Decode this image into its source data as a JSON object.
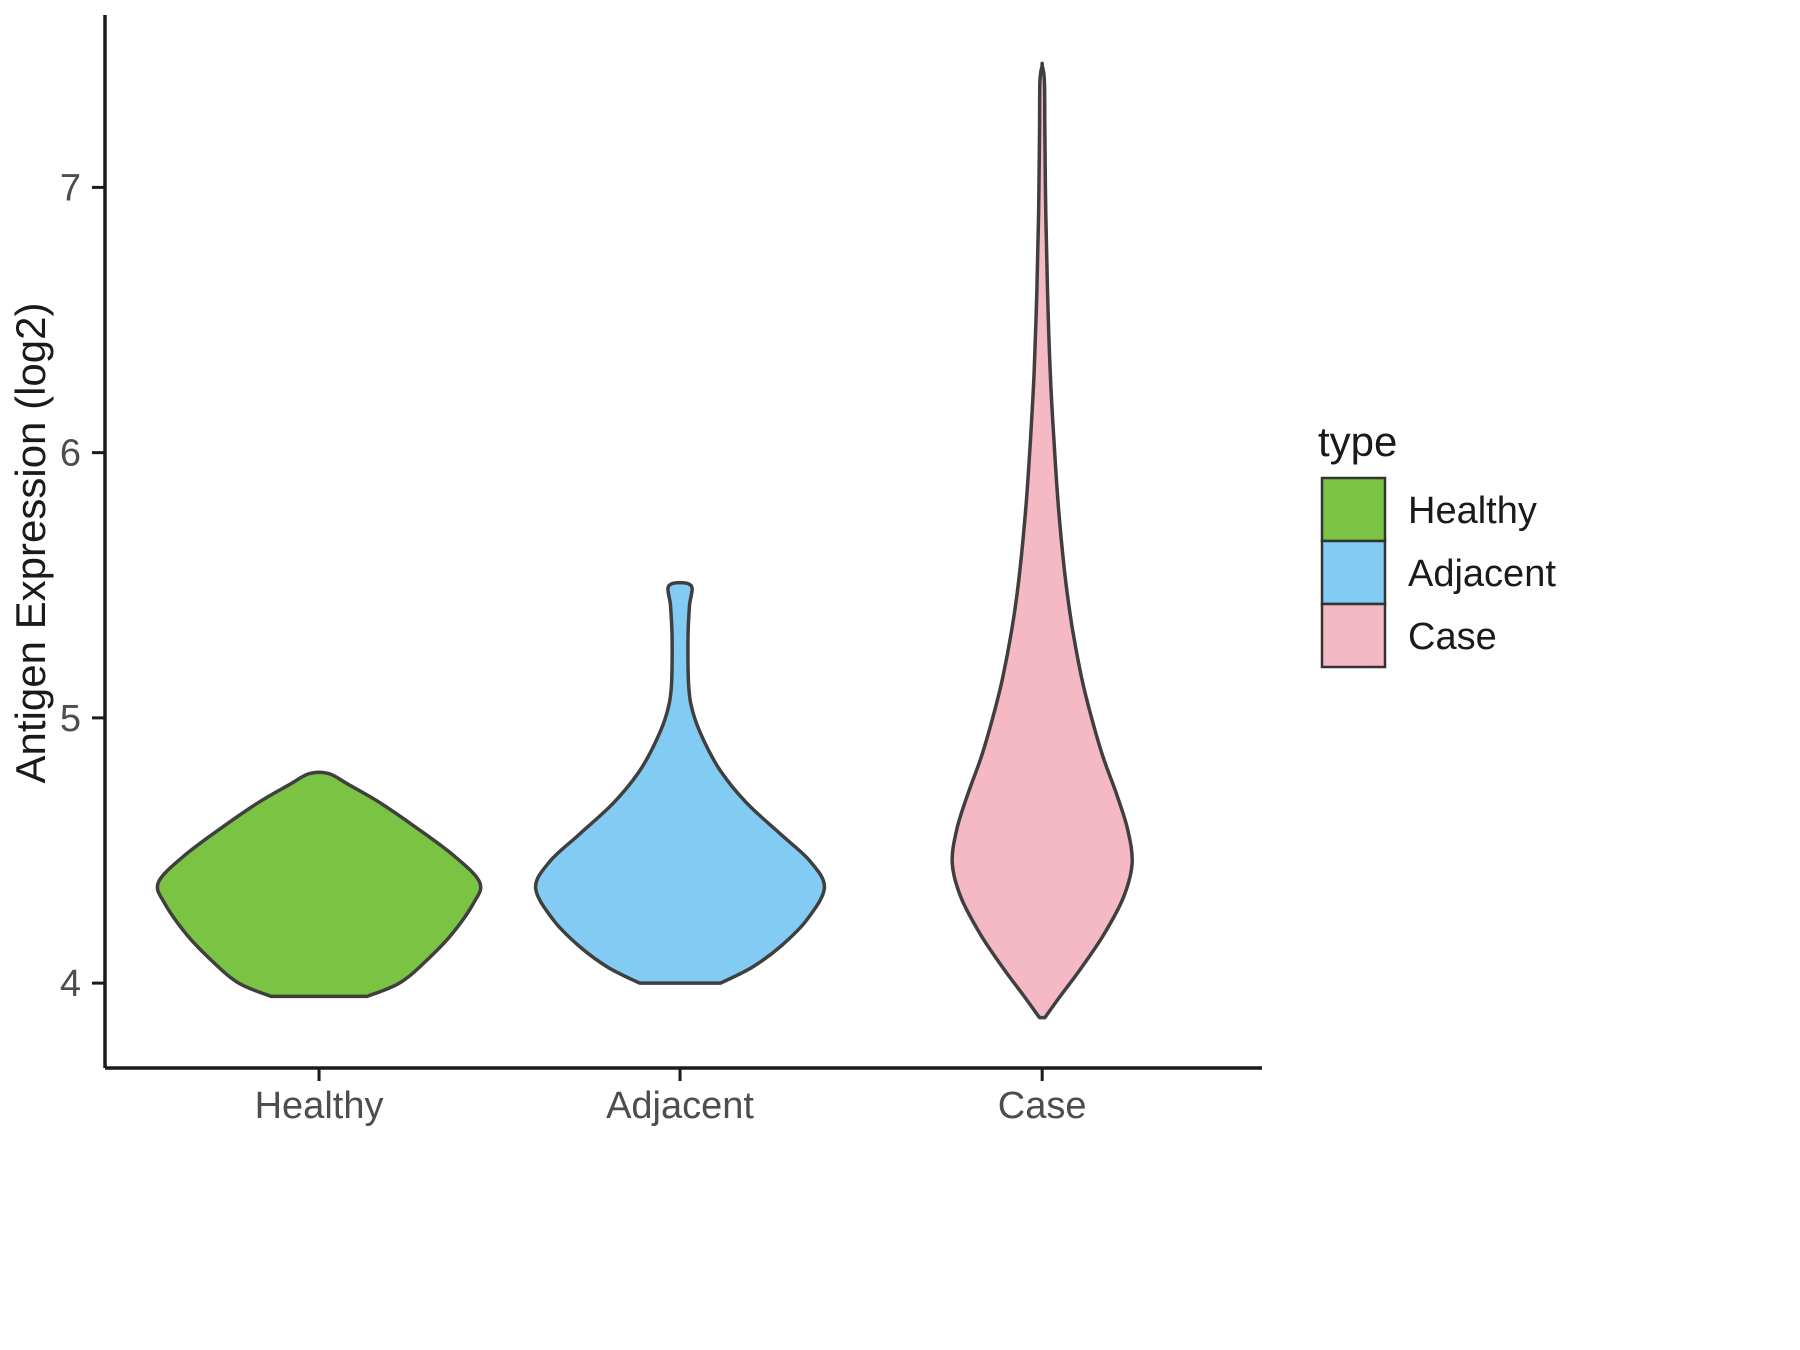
{
  "figure": {
    "background": "#ffffff"
  },
  "chart_data": {
    "type": "violin",
    "title": "",
    "xlabel": "",
    "ylabel": "Antigen Expression (log2)",
    "categories": [
      "Healthy",
      "Adjacent",
      "Case"
    ],
    "yticks": [
      4,
      5,
      6,
      7
    ],
    "ylim": [
      3.68,
      7.65
    ],
    "grid": false,
    "legend": {
      "title": "type",
      "position": "right",
      "entries": [
        {
          "label": "Healthy",
          "color": "#7BC342"
        },
        {
          "label": "Adjacent",
          "color": "#82CBF2"
        },
        {
          "label": "Case",
          "color": "#F5B9C5"
        }
      ]
    },
    "style": {
      "outline_color": "#3F3F3F",
      "axis_color": "#1a1a1a",
      "tick_label_color": "#4d4d4d"
    },
    "series": [
      {
        "name": "Healthy",
        "color": "#7BC342",
        "max_halfwidth": 0.445,
        "range": [
          3.95,
          4.79
        ],
        "profile": [
          [
            3.95,
            0.3
          ],
          [
            4.0,
            0.5
          ],
          [
            4.08,
            0.66
          ],
          [
            4.18,
            0.82
          ],
          [
            4.3,
            0.96
          ],
          [
            4.38,
            1.0
          ],
          [
            4.48,
            0.84
          ],
          [
            4.58,
            0.62
          ],
          [
            4.68,
            0.38
          ],
          [
            4.75,
            0.18
          ],
          [
            4.79,
            0.06
          ]
        ]
      },
      {
        "name": "Adjacent",
        "color": "#82CBF2",
        "max_halfwidth": 0.4,
        "range": [
          4.0,
          5.5
        ],
        "profile": [
          [
            4.0,
            0.28
          ],
          [
            4.06,
            0.5
          ],
          [
            4.14,
            0.7
          ],
          [
            4.24,
            0.88
          ],
          [
            4.36,
            1.0
          ],
          [
            4.46,
            0.9
          ],
          [
            4.56,
            0.7
          ],
          [
            4.68,
            0.46
          ],
          [
            4.8,
            0.28
          ],
          [
            4.92,
            0.16
          ],
          [
            5.02,
            0.09
          ],
          [
            5.12,
            0.06
          ],
          [
            5.3,
            0.055
          ],
          [
            5.42,
            0.065
          ],
          [
            5.5,
            0.075
          ]
        ]
      },
      {
        "name": "Case",
        "color": "#F5B9C5",
        "max_halfwidth": 0.249,
        "range": [
          3.87,
          7.46
        ],
        "profile": [
          [
            3.87,
            0.03
          ],
          [
            3.95,
            0.2
          ],
          [
            4.05,
            0.42
          ],
          [
            4.18,
            0.68
          ],
          [
            4.32,
            0.9
          ],
          [
            4.45,
            1.0
          ],
          [
            4.58,
            0.95
          ],
          [
            4.72,
            0.82
          ],
          [
            4.85,
            0.68
          ],
          [
            5.0,
            0.55
          ],
          [
            5.15,
            0.44
          ],
          [
            5.35,
            0.33
          ],
          [
            5.55,
            0.25
          ],
          [
            5.8,
            0.18
          ],
          [
            6.05,
            0.13
          ],
          [
            6.3,
            0.09
          ],
          [
            6.6,
            0.06
          ],
          [
            6.9,
            0.04
          ],
          [
            7.2,
            0.03
          ],
          [
            7.4,
            0.025
          ],
          [
            7.46,
            0.0
          ]
        ]
      }
    ]
  }
}
